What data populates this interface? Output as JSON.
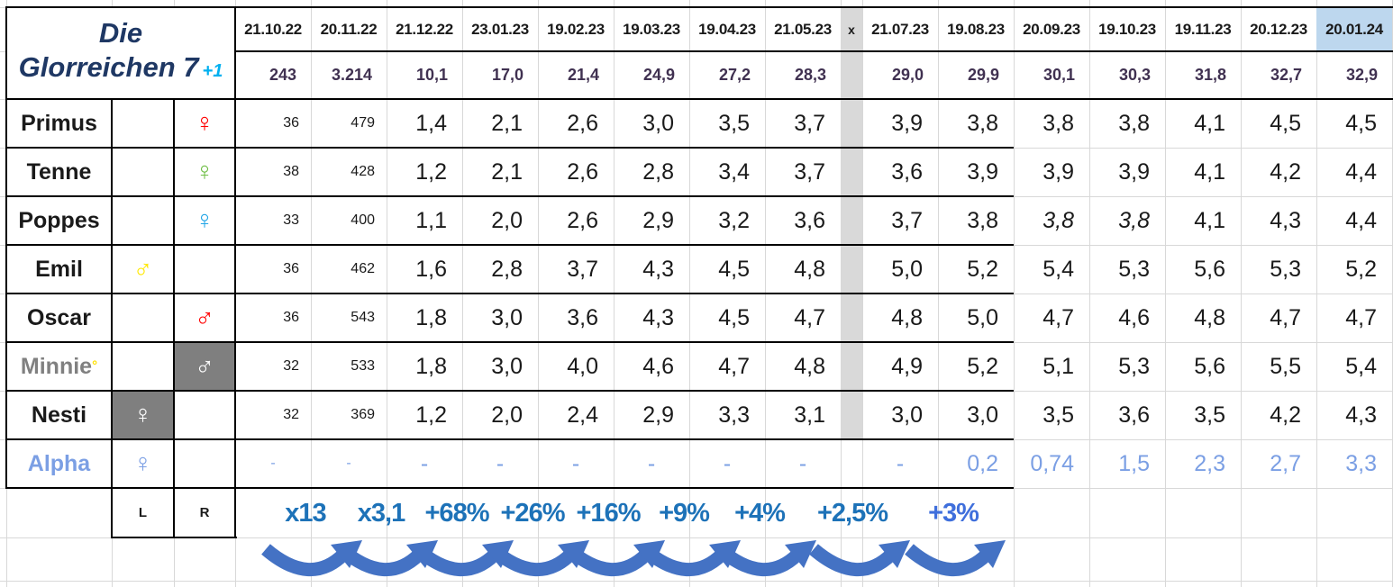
{
  "title": {
    "line1": "Die",
    "line2": "Glorreichen 7",
    "suffix": "+1"
  },
  "columns": {
    "dates_left": [
      "21.10.22",
      "20.11.22",
      "21.12.22",
      "23.01.23",
      "19.02.23",
      "19.03.23",
      "19.04.23",
      "21.05.23"
    ],
    "separator": "x",
    "dates_right": [
      "21.07.23",
      "19.08.23",
      "20.09.23",
      "19.10.23",
      "19.11.23",
      "20.12.23",
      "20.01.24"
    ],
    "last_header_highlight": "#BDD7EE",
    "separator_fill": "#D9D9D9"
  },
  "totals": {
    "left": [
      "243",
      "3.214",
      "10,1",
      "17,0",
      "21,4",
      "24,9",
      "27,2",
      "28,3"
    ],
    "right": [
      "29,0",
      "29,9",
      "30,1",
      "30,3",
      "31,8",
      "32,7",
      "32,9"
    ],
    "color": "#403151"
  },
  "rows": [
    {
      "name": "Primus",
      "sex": {
        "side": "R",
        "symbol": "female",
        "color": "#FF0000"
      },
      "values_left": [
        "36",
        "479",
        "1,4",
        "2,1",
        "2,6",
        "3,0",
        "3,5",
        "3,7"
      ],
      "values_right": [
        "3,9",
        "3,8",
        "3,8",
        "3,8",
        "4,1",
        "4,5",
        "4,5"
      ]
    },
    {
      "name": "Tenne",
      "sex": {
        "side": "R",
        "symbol": "female",
        "color": "#6FBE45"
      },
      "values_left": [
        "38",
        "428",
        "1,2",
        "2,1",
        "2,6",
        "2,8",
        "3,4",
        "3,7"
      ],
      "values_right": [
        "3,6",
        "3,9",
        "3,9",
        "3,9",
        "4,1",
        "4,2",
        "4,4"
      ]
    },
    {
      "name": "Poppes",
      "sex": {
        "side": "R",
        "symbol": "female",
        "color": "#22A5E6"
      },
      "values_left": [
        "33",
        "400",
        "1,1",
        "2,0",
        "2,6",
        "2,9",
        "3,2",
        "3,6"
      ],
      "values_right": [
        "3,7",
        "3,8",
        "3,8",
        "3,8",
        "4,1",
        "4,3",
        "4,4"
      ],
      "italic_right": [
        2,
        3
      ],
      "comment_marker_right": [
        2,
        3
      ]
    },
    {
      "name": "Emil",
      "sex": {
        "side": "L",
        "symbol": "male",
        "color": "#FFE800"
      },
      "values_left": [
        "36",
        "462",
        "1,6",
        "2,8",
        "3,7",
        "4,3",
        "4,5",
        "4,8"
      ],
      "values_right": [
        "5,0",
        "5,2",
        "5,4",
        "5,3",
        "5,6",
        "5,3",
        "5,2"
      ]
    },
    {
      "name": "Oscar",
      "sex": {
        "side": "R",
        "symbol": "male",
        "color": "#FF0000"
      },
      "values_left": [
        "36",
        "543",
        "1,8",
        "3,0",
        "3,6",
        "4,3",
        "4,5",
        "4,7"
      ],
      "values_right": [
        "4,8",
        "5,0",
        "4,7",
        "4,6",
        "4,8",
        "4,7",
        "4,7"
      ]
    },
    {
      "name": "Minnie",
      "name_color": "#808080",
      "sup": "°",
      "sup_color": "#FFE100",
      "sex": {
        "side": "R",
        "symbol": "male",
        "color": "#FFFFFF",
        "bg": "#7F7F7F"
      },
      "values_left": [
        "32",
        "533",
        "1,8",
        "3,0",
        "4,0",
        "4,6",
        "4,7",
        "4,8"
      ],
      "values_right": [
        "4,9",
        "5,2",
        "5,1",
        "5,3",
        "5,6",
        "5,5",
        "5,4"
      ]
    },
    {
      "name": "Nesti",
      "sex": {
        "side": "L",
        "symbol": "female",
        "color": "#FFFFFF",
        "bg": "#7F7F7F"
      },
      "values_left": [
        "32",
        "369",
        "1,2",
        "2,0",
        "2,4",
        "2,9",
        "3,3",
        "3,1"
      ],
      "values_right": [
        "3,0",
        "3,0",
        "3,5",
        "3,6",
        "3,5",
        "4,2",
        "4,3"
      ]
    },
    {
      "name": "Alpha",
      "name_color": "#7B9FE4",
      "row_color": "#7B9FE4",
      "sex": {
        "side": "L",
        "symbol": "female",
        "color": "#7B9FE4"
      },
      "values_left": [
        "-",
        "-",
        "-",
        "-",
        "-",
        "-",
        "-",
        "-"
      ],
      "values_right": [
        "-",
        "0,2",
        "0,74",
        "1,5",
        "2,3",
        "2,7",
        "3,3"
      ]
    }
  ],
  "footer": {
    "l_label": "L",
    "r_label": "R",
    "growth": [
      {
        "label": "x13",
        "color": "#1D72B8"
      },
      {
        "label": "x3,1",
        "color": "#1D72B8"
      },
      {
        "label": "+68%",
        "color": "#1D72B8"
      },
      {
        "label": "+26%",
        "color": "#1D72B8"
      },
      {
        "label": "+16%",
        "color": "#1D72B8"
      },
      {
        "label": "+9%",
        "color": "#1D72B8"
      },
      {
        "label": "+4%",
        "color": "#1D72B8"
      },
      {
        "label": "+2,5%",
        "color": "#1D72B8"
      },
      {
        "label": "+3%",
        "color": "#3F6FDC"
      }
    ],
    "arrow_count": 9,
    "arrow_color": "#4472C4"
  }
}
